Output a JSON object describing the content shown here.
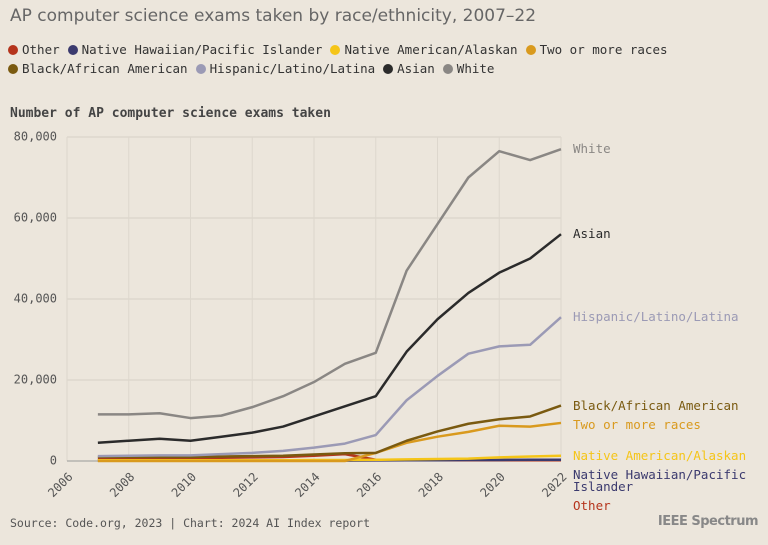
{
  "chart_data": {
    "type": "line",
    "title": "AP computer science exams taken by race/ethnicity, 2007–22",
    "ylabel": "Number of AP computer science exams taken",
    "source": "Source: Code.org, 2023 | Chart: 2024 AI Index report",
    "brand": "IEEE Spectrum",
    "x": [
      2007,
      2008,
      2009,
      2010,
      2011,
      2012,
      2013,
      2014,
      2015,
      2016,
      2017,
      2018,
      2019,
      2020,
      2021,
      2022
    ],
    "xlim": [
      2006,
      2022
    ],
    "xticks": [
      2006,
      2008,
      2010,
      2012,
      2014,
      2016,
      2018,
      2020,
      2022
    ],
    "ylim": [
      0,
      80000
    ],
    "yticks": [
      0,
      {
        "value": 20000,
        "label": "20,000"
      },
      {
        "value": 40000,
        "label": "40,000"
      },
      {
        "value": 60000,
        "label": "60,000"
      },
      {
        "value": 80000,
        "label": "80,000"
      }
    ],
    "grid": true,
    "series": [
      {
        "name": "Other",
        "color": "#b5341c",
        "values": [
          600,
          600,
          700,
          700,
          800,
          900,
          1000,
          1300,
          1700,
          300,
          200,
          200,
          200,
          200,
          200,
          200
        ]
      },
      {
        "name": "Native Hawaiian/Pacific Islander",
        "color": "#3b3a6e",
        "values": [
          100,
          100,
          100,
          100,
          100,
          100,
          100,
          100,
          100,
          150,
          200,
          200,
          250,
          250,
          300,
          300
        ]
      },
      {
        "name": "Native American/Alaskan",
        "color": "#f5c518",
        "values": [
          200,
          200,
          200,
          200,
          200,
          200,
          200,
          250,
          250,
          300,
          400,
          500,
          600,
          900,
          1100,
          1300
        ]
      },
      {
        "name": "Two or more races",
        "color": "#d99a1e",
        "values": [
          0,
          0,
          0,
          0,
          0,
          0,
          0,
          0,
          0,
          2000,
          4500,
          6000,
          7200,
          8700,
          8500,
          9400
        ]
      },
      {
        "name": "Black/African American",
        "color": "#7a5a10",
        "values": [
          1000,
          1000,
          1000,
          1000,
          1100,
          1200,
          1300,
          1600,
          1900,
          2000,
          5000,
          7300,
          9200,
          10300,
          11000,
          13700
        ]
      },
      {
        "name": "Hispanic/Latino/Latina",
        "color": "#9b9ab5",
        "values": [
          1200,
          1300,
          1400,
          1400,
          1700,
          2000,
          2500,
          3300,
          4300,
          6400,
          15000,
          21000,
          26500,
          28300,
          28700,
          35500
        ]
      },
      {
        "name": "Asian",
        "color": "#2b2b2b",
        "values": [
          4500,
          5000,
          5500,
          5000,
          6000,
          7000,
          8500,
          11000,
          13500,
          16000,
          27000,
          35000,
          41500,
          46500,
          50000,
          56000
        ]
      },
      {
        "name": "White",
        "color": "#8a8784",
        "values": [
          11500,
          11500,
          11800,
          10600,
          11200,
          13300,
          16000,
          19500,
          24000,
          26700,
          47000,
          58500,
          70000,
          76500,
          74300,
          77000
        ]
      }
    ]
  }
}
